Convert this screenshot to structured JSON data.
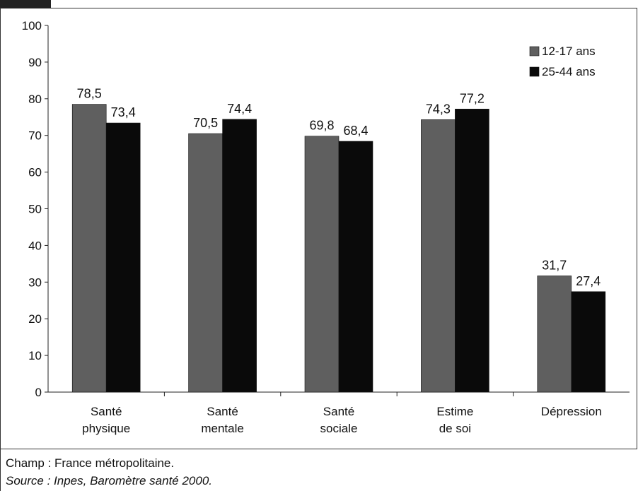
{
  "chart_data": {
    "type": "bar",
    "categories": [
      [
        "Santé",
        "physique"
      ],
      [
        "Santé",
        "mentale"
      ],
      [
        "Santé",
        "sociale"
      ],
      [
        "Estime",
        "de soi"
      ],
      [
        "Dépression"
      ]
    ],
    "series": [
      {
        "name": "12-17 ans",
        "color": "#5f5f5f",
        "values": [
          78.5,
          70.5,
          69.8,
          74.3,
          31.7
        ],
        "labels": [
          "78,5",
          "70,5",
          "69,8",
          "74,3",
          "31,7"
        ]
      },
      {
        "name": "25-44 ans",
        "color": "#0a0a0a",
        "values": [
          73.4,
          74.4,
          68.4,
          77.2,
          27.4
        ],
        "labels": [
          "73,4",
          "74,4",
          "68,4",
          "77,2",
          "27,4"
        ]
      }
    ],
    "yticks": [
      0,
      10,
      20,
      30,
      40,
      50,
      60,
      70,
      80,
      90,
      100
    ],
    "ylim": [
      0,
      100
    ],
    "grid": false,
    "legend_position": "top-right"
  },
  "notes": {
    "champ": "Champ  : France métropolitaine.",
    "source": "Source  : Inpes, Baromètre santé 2000."
  }
}
